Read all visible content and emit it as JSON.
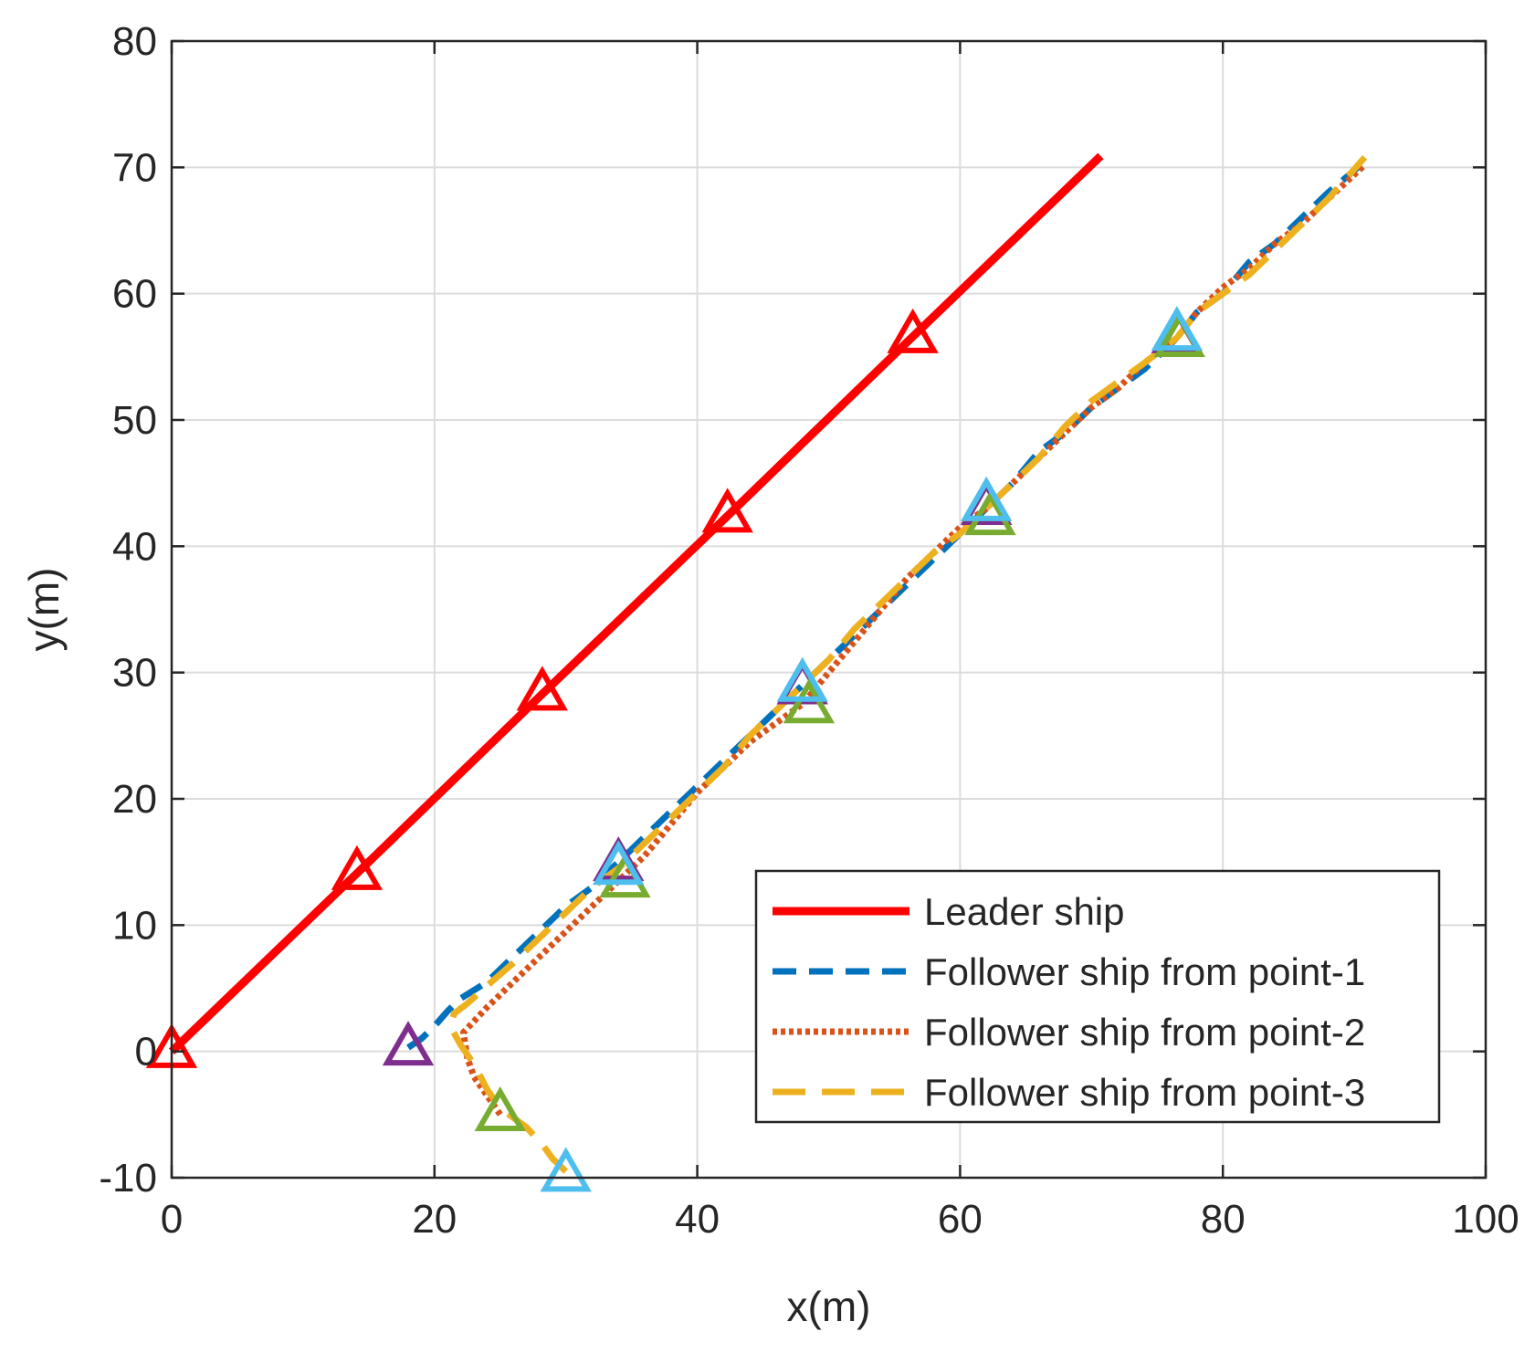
{
  "chart_data": {
    "type": "line",
    "title": "",
    "xlabel": "x(m)",
    "ylabel": "y(m)",
    "xlim": [
      0,
      100
    ],
    "ylim": [
      -10,
      80
    ],
    "xticks": [
      0,
      20,
      40,
      60,
      80,
      100
    ],
    "yticks": [
      -10,
      0,
      10,
      20,
      30,
      40,
      50,
      60,
      70,
      80
    ],
    "grid": true,
    "legend_position": "bottom-right",
    "series": [
      {
        "name": "Leader ship",
        "color": "#FF0000",
        "style": "solid",
        "x": [
          0,
          14.1,
          28.2,
          42.3,
          56.4,
          70.7
        ],
        "y": [
          0,
          14.1,
          28.3,
          42.4,
          56.6,
          70.9
        ]
      },
      {
        "name": "Follower ship from point-1",
        "color": "#0072BD",
        "style": "dashed",
        "x": [
          18,
          19,
          20,
          21,
          22,
          24,
          26,
          28,
          30,
          32,
          34,
          36,
          38,
          40,
          42,
          44,
          46,
          48,
          50,
          52,
          54,
          56,
          58,
          60,
          62,
          64,
          66,
          68,
          70,
          72,
          74,
          76.5,
          78,
          80,
          82,
          84,
          86,
          88,
          90.5
        ],
        "y": [
          0.3,
          1.0,
          2.0,
          3.2,
          4.2,
          5.5,
          7.5,
          9.5,
          11.5,
          13.0,
          15.0,
          17.0,
          19.0,
          21.0,
          23.0,
          25.0,
          27.0,
          29.0,
          31.0,
          33.0,
          35.0,
          37.0,
          39.0,
          41.0,
          43.0,
          45.0,
          47.5,
          49.0,
          51.0,
          52.5,
          54.0,
          56.5,
          58.5,
          60.0,
          62.5,
          64.0,
          66.0,
          68.0,
          70.2
        ]
      },
      {
        "name": "Follower ship from point-2",
        "color": "#D95319",
        "style": "dotted",
        "x": [
          25,
          24,
          23,
          22.5,
          22.2,
          24,
          26,
          28,
          30,
          32,
          34,
          36,
          38,
          40,
          42,
          44,
          46,
          48,
          50,
          52,
          54,
          56,
          58,
          60,
          62,
          64,
          66,
          68,
          70,
          72,
          74,
          76.5,
          78,
          80,
          82,
          84,
          86,
          88,
          90.8
        ],
        "y": [
          -5,
          -3.5,
          -2.0,
          -0.5,
          1.5,
          3.5,
          5.5,
          7.5,
          9.5,
          11.5,
          13.5,
          15.5,
          18.0,
          20.5,
          22.5,
          24.5,
          26.0,
          27.5,
          30.0,
          32.5,
          35.0,
          37.5,
          39.5,
          41.5,
          43.0,
          45.0,
          47.0,
          49.0,
          51.0,
          52.5,
          54.5,
          56.5,
          58.5,
          60.5,
          62.0,
          64.0,
          65.5,
          67.5,
          70.2
        ]
      },
      {
        "name": "Follower ship from point-3",
        "color": "#EDB120",
        "style": "long-dashed",
        "x": [
          30,
          29,
          28.3,
          27,
          25,
          24,
          23,
          22,
          21.2,
          21.5,
          22.5,
          24,
          26,
          28,
          30,
          32,
          34,
          36,
          38,
          40,
          42,
          44,
          46,
          48,
          50,
          52,
          54,
          56,
          58,
          60,
          62,
          64,
          66,
          68,
          70,
          72,
          74,
          76.5,
          78,
          80,
          82,
          84,
          86,
          88,
          90.8
        ],
        "y": [
          -9.5,
          -8.5,
          -7.5,
          -6.0,
          -4.5,
          -3.0,
          -1.0,
          0.5,
          2.0,
          3.0,
          3.8,
          5.2,
          7.0,
          9.0,
          11.0,
          13.0,
          14.5,
          16.5,
          18.5,
          20.5,
          22.5,
          25.0,
          27.0,
          29.0,
          31.0,
          33.5,
          35.5,
          37.5,
          39.5,
          41.0,
          43.0,
          45.0,
          47.0,
          49.5,
          51.5,
          53.0,
          54.5,
          56.5,
          58.5,
          60.0,
          61.5,
          63.5,
          65.5,
          67.5,
          70.8
        ]
      }
    ],
    "markers": [
      {
        "color": "#FF0000",
        "points": [
          [
            0,
            0
          ],
          [
            14.1,
            14.1
          ],
          [
            28.2,
            28.3
          ],
          [
            42.3,
            42.4
          ],
          [
            56.4,
            56.6
          ]
        ]
      },
      {
        "color": "#7E2F8E",
        "points": [
          [
            18,
            0.2
          ],
          [
            34,
            14.8
          ],
          [
            48,
            28.8
          ],
          [
            62,
            43.0
          ],
          [
            76.5,
            56.6
          ]
        ]
      },
      {
        "color": "#77AC30",
        "points": [
          [
            25,
            -5
          ],
          [
            34.5,
            13.5
          ],
          [
            48.5,
            27.3
          ],
          [
            62.3,
            42.2
          ],
          [
            76.7,
            56.3
          ]
        ]
      },
      {
        "color": "#4DBEEE",
        "points": [
          [
            30,
            -9.8
          ],
          [
            34,
            14.5
          ],
          [
            48,
            29.0
          ],
          [
            62,
            43.3
          ],
          [
            76.5,
            56.8
          ]
        ]
      }
    ]
  }
}
